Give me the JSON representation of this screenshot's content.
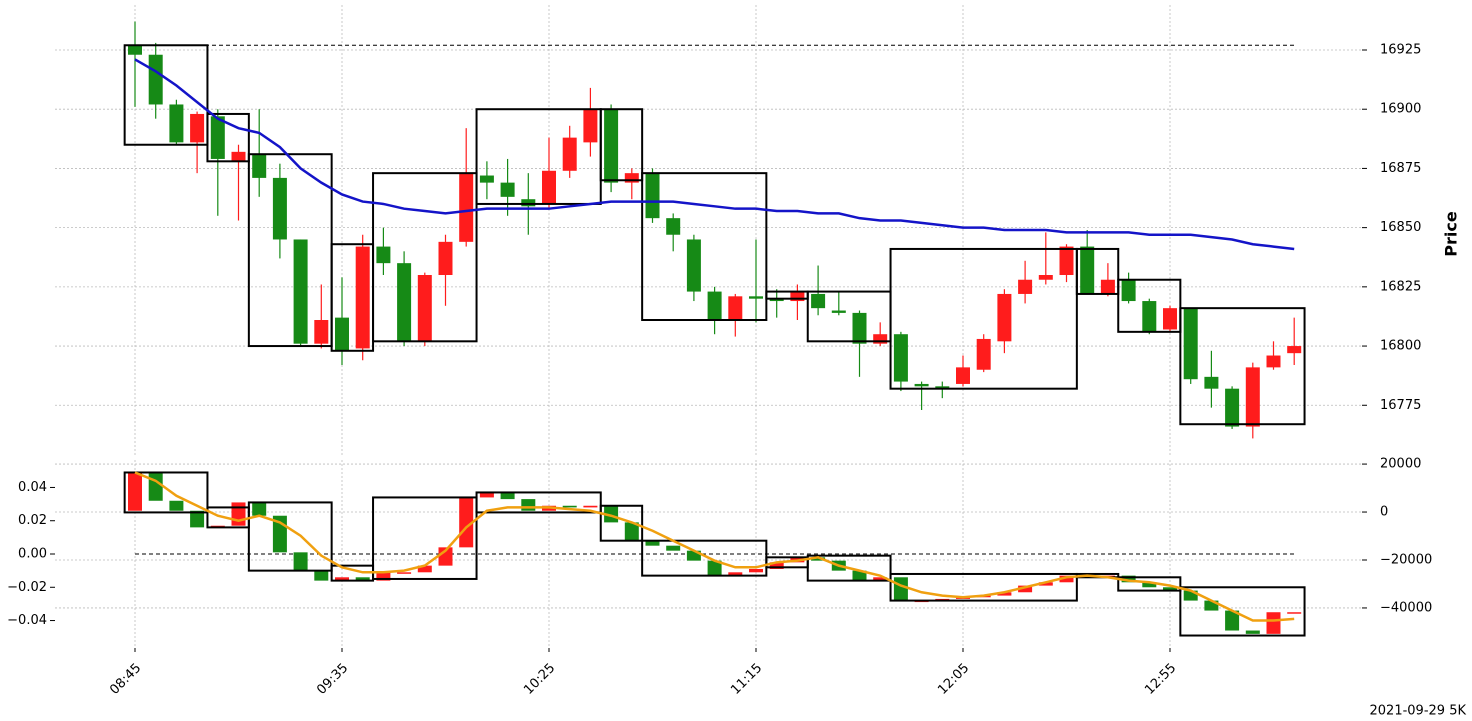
{
  "chart_data": [
    {
      "type": "candlestick",
      "ylabel": "Price",
      "up_color": "#ff1c1c",
      "down_color": "#168a16",
      "ylim": [
        16754,
        16944
      ],
      "yticks": [
        16775,
        16800,
        16825,
        16850,
        16875,
        16900,
        16925
      ],
      "grid": true,
      "open": [
        16927,
        16923,
        16902,
        16886,
        16897,
        16878,
        16881,
        16871,
        16845,
        16801,
        16812,
        16799,
        16842,
        16835,
        16802,
        16830,
        16844,
        16872,
        16869,
        16862,
        16860,
        16874,
        16886,
        16900,
        16869,
        16873,
        16854,
        16845,
        16823,
        16811,
        16821,
        16820,
        16819,
        16822,
        16815,
        16814,
        16801,
        16805,
        16784,
        16783,
        16784,
        16790,
        16802,
        16822,
        16828,
        16830,
        16842,
        16822,
        16828,
        16819,
        16807,
        16816,
        16787,
        16782,
        16766,
        16791,
        16797
      ],
      "high": [
        16937,
        16928,
        16904,
        16899,
        16900,
        16885,
        16900,
        16877,
        16845,
        16826,
        16829,
        16847,
        16850,
        16840,
        16831,
        16847,
        16892,
        16878,
        16879,
        16873,
        16888,
        16893,
        16909,
        16902,
        16875,
        16875,
        16856,
        16847,
        16825,
        16822,
        16845,
        16824,
        16826,
        16834,
        16823,
        16815,
        16810,
        16806,
        16785,
        16785,
        16796,
        16805,
        16824,
        16836,
        16848,
        16843,
        16849,
        16835,
        16831,
        16820,
        16817,
        16816,
        16798,
        16783,
        16793,
        16802,
        16812
      ],
      "low": [
        16901,
        16896,
        16885,
        16873,
        16855,
        16853,
        16863,
        16837,
        16800,
        16799,
        16792,
        16794,
        16830,
        16800,
        16800,
        16817,
        16842,
        16862,
        16855,
        16847,
        16858,
        16871,
        16880,
        16865,
        16862,
        16852,
        16840,
        16819,
        16805,
        16804,
        16810,
        16812,
        16811,
        16813,
        16813,
        16787,
        16800,
        16781,
        16773,
        16778,
        16783,
        16789,
        16797,
        16818,
        16826,
        16827,
        16822,
        16821,
        16818,
        16805,
        16806,
        16784,
        16774,
        16765,
        16761,
        16790,
        16792
      ],
      "close": [
        16923,
        16902,
        16886,
        16898,
        16879,
        16882,
        16871,
        16845,
        16801,
        16811,
        16798,
        16842,
        16835,
        16802,
        16830,
        16844,
        16873,
        16869,
        16863,
        16859,
        16874,
        16888,
        16900,
        16869,
        16873,
        16854,
        16847,
        16823,
        16811,
        16821,
        16820,
        16819,
        16823,
        16816,
        16814,
        16801,
        16805,
        16785,
        16783,
        16782,
        16791,
        16803,
        16822,
        16828,
        16830,
        16842,
        16822,
        16828,
        16819,
        16806,
        16816,
        16786,
        16782,
        16766,
        16791,
        16796,
        16800
      ],
      "series": [
        {
          "color": "#1414c8",
          "values": [
            16921,
            16916,
            16910,
            16903,
            16896,
            16892,
            16890,
            16884,
            16875,
            16869,
            16864,
            16861,
            16860,
            16858,
            16857,
            16856,
            16857,
            16858,
            16858,
            16858,
            16858,
            16859,
            16860,
            16861,
            16861,
            16861,
            16861,
            16860,
            16859,
            16858,
            16858,
            16857,
            16857,
            16856,
            16856,
            16854,
            16853,
            16853,
            16852,
            16851,
            16850,
            16850,
            16849,
            16849,
            16849,
            16848,
            16848,
            16848,
            16848,
            16847,
            16847,
            16847,
            16846,
            16845,
            16843,
            16842,
            16841
          ]
        }
      ],
      "hline": 16927,
      "boxes": [
        {
          "start": 0,
          "end": 3,
          "high": 16927,
          "low": 16885
        },
        {
          "start": 4,
          "end": 5,
          "high": 16898,
          "low": 16878
        },
        {
          "start": 6,
          "end": 9,
          "high": 16881,
          "low": 16800
        },
        {
          "start": 10,
          "end": 11,
          "high": 16843,
          "low": 16798
        },
        {
          "start": 12,
          "end": 16,
          "high": 16873,
          "low": 16802
        },
        {
          "start": 17,
          "end": 22,
          "high": 16900,
          "low": 16860
        },
        {
          "start": 23,
          "end": 24,
          "high": 16900,
          "low": 16870
        },
        {
          "start": 25,
          "end": 30,
          "high": 16873,
          "low": 16811
        },
        {
          "start": 31,
          "end": 32,
          "high": 16823,
          "low": 16820
        },
        {
          "start": 33,
          "end": 36,
          "high": 16823,
          "low": 16802
        },
        {
          "start": 37,
          "end": 45,
          "high": 16841,
          "low": 16782
        },
        {
          "start": 46,
          "end": 47,
          "high": 16841,
          "low": 16822
        },
        {
          "start": 48,
          "end": 50,
          "high": 16828,
          "low": 16806
        },
        {
          "start": 51,
          "end": 56,
          "high": 16816,
          "low": 16767
        }
      ]
    },
    {
      "type": "candlestick",
      "caption": "2021-09-29 5K",
      "up_color": "#ff1c1c",
      "down_color": "#168a16",
      "categories": [
        "08:45",
        null,
        null,
        null,
        null,
        null,
        null,
        null,
        null,
        null,
        "09:35",
        null,
        null,
        null,
        null,
        null,
        null,
        null,
        null,
        null,
        "10:25",
        null,
        null,
        null,
        null,
        null,
        null,
        null,
        null,
        null,
        "11:15",
        null,
        null,
        null,
        null,
        null,
        null,
        null,
        null,
        null,
        "12:05",
        null,
        null,
        null,
        null,
        null,
        null,
        null,
        null,
        null,
        "12:55",
        null,
        null,
        null,
        null,
        null,
        null
      ],
      "ylim": [
        -0.0565,
        0.0565
      ],
      "yticks": [
        {
          "value": -0.04,
          "label": "−0.04"
        },
        {
          "value": -0.02,
          "label": "−0.02"
        },
        {
          "value": 0,
          "label": "0.00"
        },
        0.02,
        0.04
      ],
      "y2lim": [
        -56700,
        21700
      ],
      "y2ticks": [
        {
          "value": -40000,
          "label": "−40000"
        },
        {
          "value": -20000,
          "label": "−20000"
        },
        0,
        20000
      ],
      "grid": true,
      "open": [
        0.026,
        0.049,
        0.032,
        0.026,
        0.016,
        0.017,
        0.031,
        0.023,
        0.001,
        -0.01,
        -0.016,
        -0.014,
        -0.016,
        -0.011,
        -0.011,
        -0.007,
        0.004,
        0.034,
        0.037,
        0.033,
        0.026,
        0.029,
        0.028,
        0.029,
        0.019,
        0.008,
        0.005,
        0.002,
        -0.004,
        -0.013,
        -0.011,
        -0.009,
        -0.005,
        -0.002,
        -0.004,
        -0.01,
        -0.016,
        -0.014,
        -0.028,
        -0.028,
        -0.027,
        -0.026,
        -0.025,
        -0.023,
        -0.019,
        -0.017,
        -0.013,
        -0.014,
        -0.013,
        -0.017,
        -0.02,
        -0.022,
        -0.028,
        -0.034,
        -0.046,
        -0.048,
        -0.035
      ],
      "close": [
        0.049,
        0.032,
        0.026,
        0.016,
        0.017,
        0.031,
        0.023,
        0.001,
        -0.01,
        -0.016,
        -0.014,
        -0.016,
        -0.011,
        -0.011,
        -0.007,
        0.004,
        0.034,
        0.037,
        0.033,
        0.026,
        0.029,
        0.028,
        0.029,
        0.019,
        0.008,
        0.005,
        0.002,
        -0.004,
        -0.013,
        -0.011,
        -0.009,
        -0.005,
        -0.002,
        -0.004,
        -0.01,
        -0.016,
        -0.014,
        -0.028,
        -0.028,
        -0.027,
        -0.026,
        -0.025,
        -0.023,
        -0.019,
        -0.017,
        -0.013,
        -0.014,
        -0.013,
        -0.017,
        -0.02,
        -0.022,
        -0.028,
        -0.034,
        -0.046,
        -0.048,
        -0.035,
        -0.035
      ],
      "series": [
        {
          "color": "#f0a010",
          "values": [
            0.049,
            0.044,
            0.035,
            0.029,
            0.023,
            0.02,
            0.023,
            0.019,
            0.011,
            -0.001,
            -0.008,
            -0.011,
            -0.011,
            -0.01,
            -0.007,
            0.002,
            0.016,
            0.026,
            0.028,
            0.028,
            0.028,
            0.027,
            0.026,
            0.023,
            0.019,
            0.014,
            0.008,
            0.002,
            -0.004,
            -0.008,
            -0.008,
            -0.005,
            -0.004,
            -0.002,
            -0.007,
            -0.01,
            -0.013,
            -0.019,
            -0.023,
            -0.025,
            -0.026,
            -0.025,
            -0.023,
            -0.02,
            -0.017,
            -0.014,
            -0.013,
            -0.014,
            -0.016,
            -0.017,
            -0.019,
            -0.022,
            -0.028,
            -0.034,
            -0.04,
            -0.04,
            -0.039
          ]
        }
      ],
      "hline": 0,
      "boxes": [
        {
          "start": 0,
          "end": 3,
          "high": 0.049,
          "low": 0.025
        },
        {
          "start": 4,
          "end": 5,
          "high": 0.028,
          "low": 0.016
        },
        {
          "start": 6,
          "end": 9,
          "high": 0.031,
          "low": -0.01
        },
        {
          "start": 10,
          "end": 11,
          "high": -0.007,
          "low": -0.016
        },
        {
          "start": 12,
          "end": 16,
          "high": 0.034,
          "low": -0.015
        },
        {
          "start": 17,
          "end": 22,
          "high": 0.037,
          "low": 0.025
        },
        {
          "start": 23,
          "end": 24,
          "high": 0.029,
          "low": 0.008
        },
        {
          "start": 25,
          "end": 30,
          "high": 0.008,
          "low": -0.013
        },
        {
          "start": 31,
          "end": 32,
          "high": -0.002,
          "low": -0.008
        },
        {
          "start": 33,
          "end": 36,
          "high": -0.001,
          "low": -0.016
        },
        {
          "start": 37,
          "end": 45,
          "high": -0.012,
          "low": -0.028
        },
        {
          "start": 46,
          "end": 47,
          "high": -0.012,
          "low": -0.014
        },
        {
          "start": 48,
          "end": 50,
          "high": -0.014,
          "low": -0.022
        },
        {
          "start": 51,
          "end": 56,
          "high": -0.02,
          "low": -0.049
        }
      ]
    }
  ]
}
